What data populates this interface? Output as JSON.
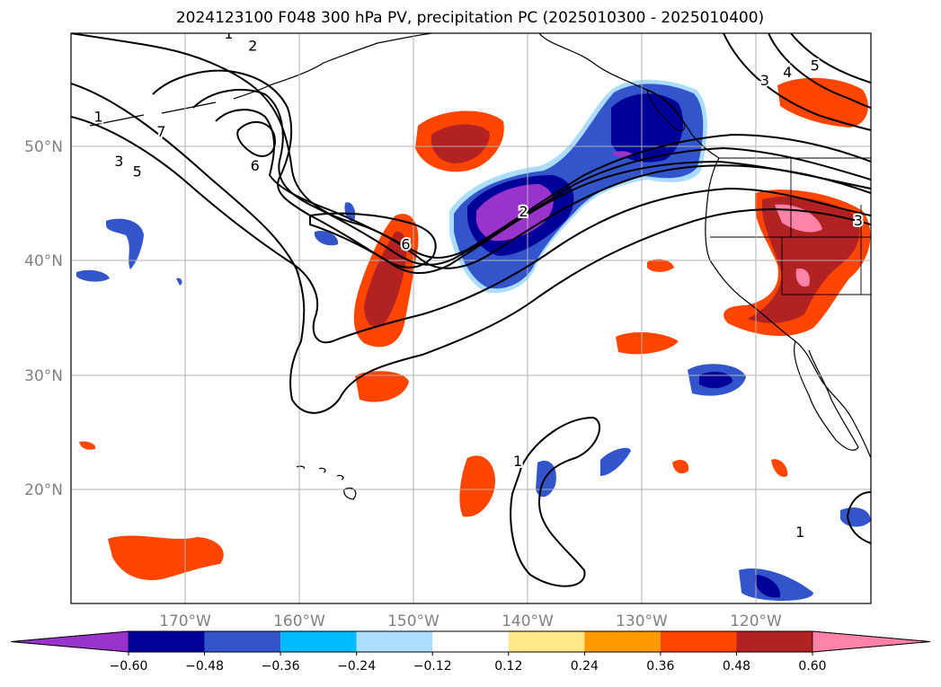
{
  "title": "2024123100 F048 300 hPa PV, precipitation PC (2025010300 - 2025010400)",
  "colors": {
    "land_outline": "#000000",
    "gridline": "#b0b0b0",
    "pv_contour": "#000000",
    "axis_label": "#808080"
  },
  "map": {
    "projection": "lat-lon",
    "lon_range": [
      -180,
      -110
    ],
    "lat_range": [
      10,
      60
    ],
    "lon_ticks": [
      {
        "value": -170,
        "label": "170°W"
      },
      {
        "value": -160,
        "label": "160°W"
      },
      {
        "value": -150,
        "label": "150°W"
      },
      {
        "value": -140,
        "label": "140°W"
      },
      {
        "value": -130,
        "label": "130°W"
      },
      {
        "value": -120,
        "label": "120°W"
      }
    ],
    "lat_ticks": [
      {
        "value": 20,
        "label": "20°N"
      },
      {
        "value": 30,
        "label": "30°N"
      },
      {
        "value": 40,
        "label": "40°N"
      },
      {
        "value": 50,
        "label": "50°N"
      }
    ],
    "grid": true
  },
  "pv_contour_labels": [
    {
      "text": "1",
      "lon": -166.2,
      "lat": 59.9
    },
    {
      "text": "2",
      "lon": -164.1,
      "lat": 58.8
    },
    {
      "text": "1",
      "lon": -177.6,
      "lat": 52.6
    },
    {
      "text": "7",
      "lon": -172.1,
      "lat": 51.3
    },
    {
      "text": "3",
      "lon": -175.8,
      "lat": 48.7
    },
    {
      "text": "5",
      "lon": -174.2,
      "lat": 47.8
    },
    {
      "text": "6",
      "lon": -163.9,
      "lat": 48.3
    },
    {
      "text": "6",
      "lon": -150.7,
      "lat": 41.4
    },
    {
      "text": "2",
      "lon": -140.4,
      "lat": 44.3
    },
    {
      "text": "3",
      "lon": -119.3,
      "lat": 55.8
    },
    {
      "text": "4",
      "lon": -117.3,
      "lat": 56.5
    },
    {
      "text": "5",
      "lon": -114.9,
      "lat": 57.1
    },
    {
      "text": "3",
      "lon": -111.1,
      "lat": 43.5
    },
    {
      "text": "1",
      "lon": -140.9,
      "lat": 22.4
    },
    {
      "text": "1",
      "lon": -116.2,
      "lat": 16.2
    }
  ],
  "colorbar": {
    "ticks": [
      "−0.60",
      "−0.48",
      "−0.36",
      "−0.24",
      "−0.12",
      "0.12",
      "0.24",
      "0.36",
      "0.48",
      "0.60"
    ],
    "bins": [
      {
        "color": "#9933cc"
      },
      {
        "color": "#000099"
      },
      {
        "color": "#3355cc"
      },
      {
        "color": "#00bbff"
      },
      {
        "color": "#aaddff"
      },
      {
        "color": "#ffffff"
      },
      {
        "color": "#ffe88a"
      },
      {
        "color": "#ff9a00"
      },
      {
        "color": "#ff4500"
      },
      {
        "color": "#b22222"
      },
      {
        "color": "#ff82a9"
      }
    ]
  }
}
